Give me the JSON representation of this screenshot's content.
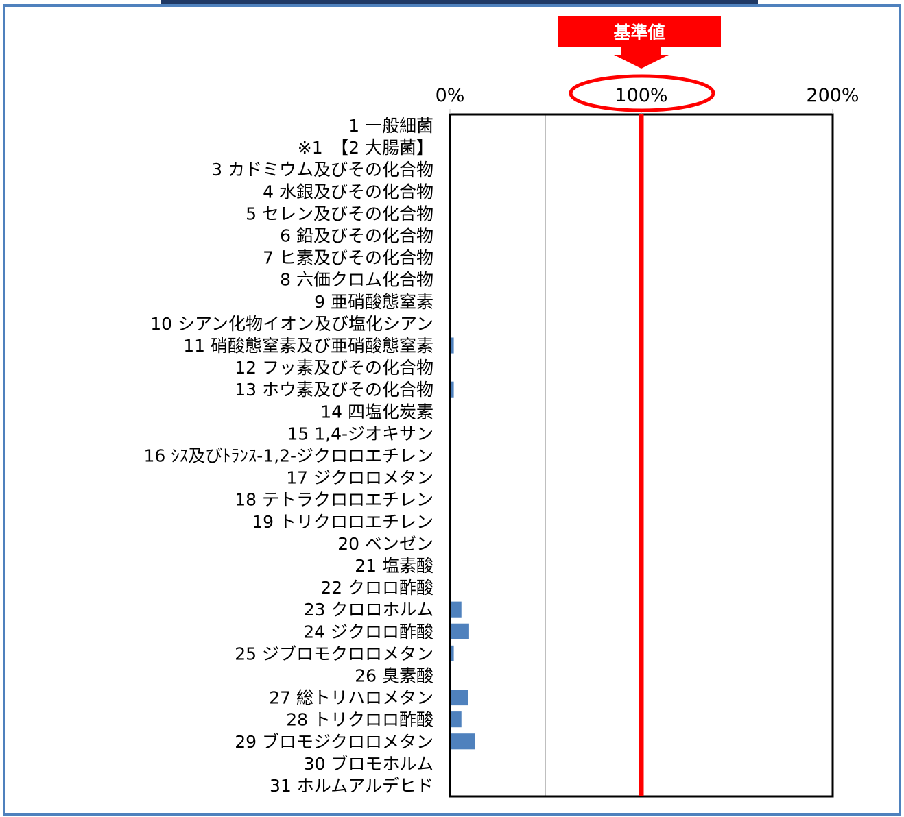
{
  "chart_data": {
    "type": "bar",
    "orientation": "horizontal",
    "categories": [
      "1 一般細菌",
      "※1　【2 大腸菌】",
      "3 カドミウム及びその化合物",
      "4 水銀及びその化合物",
      "5 セレン及びその化合物",
      "6 鉛及びその化合物",
      "7 ヒ素及びその化合物",
      "8 六価クロム化合物",
      "9 亜硝酸態窒素",
      "10 シアン化物イオン及び塩化シアン",
      "11 硝酸態窒素及び亜硝酸態窒素",
      "12 フッ素及びその化合物",
      "13 ホウ素及びその化合物",
      "14 四塩化炭素",
      "15 1,4-ジオキサン",
      "16 ｼｽ及びﾄﾗﾝｽ-1,2-ジクロロエチレン",
      "17 ジクロロメタン",
      "18 テトラクロロエチレン",
      "19 トリクロロエチレン",
      "20 ベンゼン",
      "21 塩素酸",
      "22 クロロ酢酸",
      "23 クロロホルム",
      "24 ジクロロ酢酸",
      "25 ジブロモクロロメタン",
      "26 臭素酸",
      "27 総トリハロメタン",
      "28 トリクロロ酢酸",
      "29 ブロモジクロロメタン",
      "30 ブロモホルム",
      "31 ホルムアルデヒド"
    ],
    "values": [
      0,
      0,
      0,
      0,
      0,
      0,
      0,
      0,
      0,
      0,
      2,
      0,
      2,
      0,
      0,
      0,
      0,
      0,
      0,
      0,
      0,
      0,
      6,
      10,
      2,
      0,
      9.5,
      6,
      13,
      0,
      0
    ],
    "xlim": [
      0,
      200
    ],
    "xticks": [
      0,
      100,
      200
    ],
    "xtick_labels": [
      "0%",
      "100%",
      "200%"
    ],
    "gridlines": [
      50,
      100,
      150
    ],
    "reference_value": 100,
    "reference_label": "基準値",
    "bar_color": "#4f81bd",
    "reference_color": "#ff0000"
  }
}
